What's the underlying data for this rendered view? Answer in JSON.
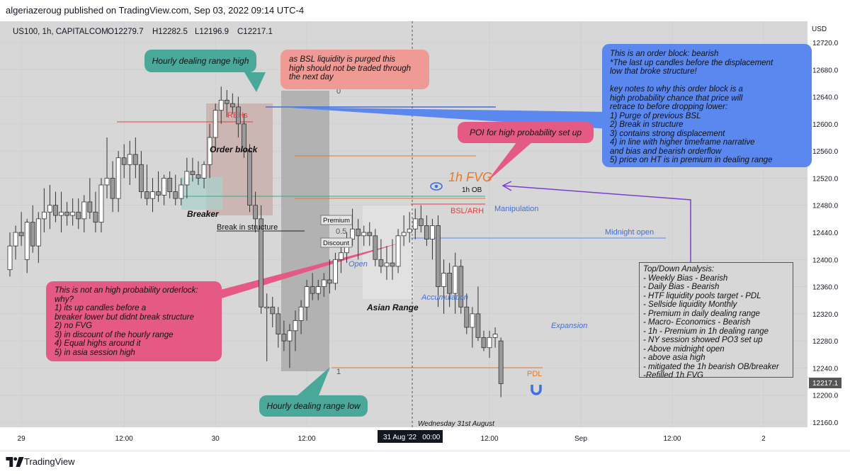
{
  "header": {
    "publisher": "algeriazeroug published on TradingView.com, Sep 03, 2022 09:14 UTC-4"
  },
  "footer": {
    "brand": "TradingView"
  },
  "symbol": {
    "name": "US100, 1h, CAPITALCOM",
    "open": "O12279.7",
    "high": "H12282.5",
    "low": "L12196.9",
    "close": "C12217.1"
  },
  "annotations": {
    "hourly_high": "Hourly dealing range high",
    "hourly_low": "Hourly dealing range low",
    "bsl_note": "as BSL liquidity is purged this\nhigh should not be traded through\nthe next day",
    "poi": "POI for high probability set up",
    "ob_note": "This is an order block: bearish\n*The last up candles before the displacement\nlow that broke structure!\n\nkey notes to why this order block is a\nhigh probability chance that price will\nretrace to before dropping lower:\n1) Purge of previous BSL\n2) Break in structure\n3) contains strong displacement\n4) in line with higher timeframe narrative\nand bias and bearish orderflow\n5) price on HT is in premium in dealing range",
    "not_ob_note": "This is not an high probability orderlock:\nwhy?\n1) its up candles before a\nbreaker lower but didnt break structure\n2) no FVG\n3) in discount of the hourly range\n4) Equal highs around it\n5) in asia session high",
    "topdown": "Top/Down Analysis:\n- Weekly Bias - Bearish\n- Daily Bias - Bearish\n- HTF liquidity pools target - PDL\n- Sellside liquidity Monthly\n- Premium in daily dealing range\n- Macro- Economics - Bearish\n- 1h - Premium in 1h dealing range\n- NY session showed PO3 set up\n- Above midnight open\n- above asia high\n- mitigated the 1h bearish OB/breaker\n-Refilled 1h FVG"
  },
  "labels": {
    "rehs": "REHs",
    "order_block": "Order block",
    "breaker": "Breaker",
    "bis": "Break in structure",
    "premium": "Premium",
    "half": "0.5",
    "discount": "Discount",
    "zero": "0",
    "one": "1",
    "fvg": "1h FVG",
    "ob_1h": "1h OB",
    "bsl_arh": "BSL/ARH",
    "manipulation": "Manipulation",
    "midnight_open": "Midnight open",
    "open": "Open",
    "accumulation": "Accumulation",
    "asian_range": "Asian Range",
    "expansion": "Expansion",
    "pdl": "PDL",
    "date_note": "Wednesday 31st August"
  },
  "colors": {
    "background": "#d7d7d7",
    "candle_body": "#ffffff",
    "candle_bear": "#9a9a9a",
    "teal": "#4aa89a",
    "pink": "#e55a85",
    "salmon": "#f09a96",
    "blue": "#5a88ef",
    "red": "#e04040",
    "orange": "#e8782a",
    "purple": "#7b3fd0"
  },
  "chart_data": {
    "type": "candlestick",
    "currency": "USD",
    "y_ticks": [
      12720,
      12680,
      12640,
      12600,
      12560,
      12520,
      12480,
      12440,
      12400,
      12360,
      12320,
      12280,
      12240,
      12200,
      12160
    ],
    "y_tick_labels": [
      "12720.0",
      "12680.0",
      "12640.0",
      "12600.0",
      "12560.0",
      "12520.0",
      "12480.0",
      "12440.0",
      "12400.0",
      "12360.0",
      "12320.0",
      "12280.0",
      "12240.0",
      "12200.0",
      "12160.0"
    ],
    "last_price_label": "12217.1",
    "ylim": [
      12140,
      12740
    ],
    "x_labels": [
      {
        "i": 2,
        "label": "29"
      },
      {
        "i": 20,
        "label": "12:00"
      },
      {
        "i": 36,
        "label": "30"
      },
      {
        "i": 52,
        "label": "12:00"
      },
      {
        "i": 84,
        "label": "12:00"
      },
      {
        "i": 100,
        "label": "Sep"
      },
      {
        "i": 116,
        "label": "12:00"
      },
      {
        "i": 132,
        "label": "2"
      }
    ],
    "crosshair_label": "31 Aug '22   00:00",
    "crosshair_index": 68,
    "candles": [
      {
        "o": 12385,
        "h": 12440,
        "l": 12375,
        "c": 12420
      },
      {
        "o": 12420,
        "h": 12450,
        "l": 12400,
        "c": 12440
      },
      {
        "o": 12440,
        "h": 12470,
        "l": 12420,
        "c": 12435
      },
      {
        "o": 12400,
        "h": 12460,
        "l": 12380,
        "c": 12455
      },
      {
        "o": 12455,
        "h": 12480,
        "l": 12410,
        "c": 12420
      },
      {
        "o": 12420,
        "h": 12470,
        "l": 12395,
        "c": 12460
      },
      {
        "o": 12460,
        "h": 12505,
        "l": 12440,
        "c": 12470
      },
      {
        "o": 12470,
        "h": 12510,
        "l": 12445,
        "c": 12480
      },
      {
        "o": 12480,
        "h": 12500,
        "l": 12455,
        "c": 12465
      },
      {
        "o": 12465,
        "h": 12500,
        "l": 12440,
        "c": 12470
      },
      {
        "o": 12470,
        "h": 12485,
        "l": 12450,
        "c": 12465
      },
      {
        "o": 12465,
        "h": 12490,
        "l": 12450,
        "c": 12470
      },
      {
        "o": 12470,
        "h": 12490,
        "l": 12445,
        "c": 12460
      },
      {
        "o": 12460,
        "h": 12495,
        "l": 12440,
        "c": 12485
      },
      {
        "o": 12485,
        "h": 12520,
        "l": 12460,
        "c": 12470
      },
      {
        "o": 12470,
        "h": 12500,
        "l": 12440,
        "c": 12455
      },
      {
        "o": 12455,
        "h": 12520,
        "l": 12440,
        "c": 12510
      },
      {
        "o": 12510,
        "h": 12580,
        "l": 12490,
        "c": 12520
      },
      {
        "o": 12520,
        "h": 12545,
        "l": 12470,
        "c": 12490
      },
      {
        "o": 12490,
        "h": 12560,
        "l": 12470,
        "c": 12550
      },
      {
        "o": 12550,
        "h": 12570,
        "l": 12520,
        "c": 12540
      },
      {
        "o": 12540,
        "h": 12575,
        "l": 12510,
        "c": 12555
      },
      {
        "o": 12555,
        "h": 12580,
        "l": 12520,
        "c": 12540
      },
      {
        "o": 12540,
        "h": 12560,
        "l": 12490,
        "c": 12500
      },
      {
        "o": 12500,
        "h": 12540,
        "l": 12480,
        "c": 12490
      },
      {
        "o": 12490,
        "h": 12520,
        "l": 12470,
        "c": 12500
      },
      {
        "o": 12500,
        "h": 12530,
        "l": 12485,
        "c": 12495
      },
      {
        "o": 12495,
        "h": 12525,
        "l": 12480,
        "c": 12520
      },
      {
        "o": 12520,
        "h": 12530,
        "l": 12490,
        "c": 12500
      },
      {
        "o": 12500,
        "h": 12525,
        "l": 12480,
        "c": 12490
      },
      {
        "o": 12490,
        "h": 12520,
        "l": 12480,
        "c": 12510
      },
      {
        "o": 12510,
        "h": 12550,
        "l": 12490,
        "c": 12530
      },
      {
        "o": 12530,
        "h": 12550,
        "l": 12515,
        "c": 12525
      },
      {
        "o": 12525,
        "h": 12545,
        "l": 12510,
        "c": 12520
      },
      {
        "o": 12520,
        "h": 12545,
        "l": 12505,
        "c": 12540
      },
      {
        "o": 12540,
        "h": 12600,
        "l": 12520,
        "c": 12580
      },
      {
        "o": 12580,
        "h": 12630,
        "l": 12560,
        "c": 12620
      },
      {
        "o": 12620,
        "h": 12655,
        "l": 12600,
        "c": 12635
      },
      {
        "o": 12635,
        "h": 12650,
        "l": 12610,
        "c": 12630
      },
      {
        "o": 12630,
        "h": 12645,
        "l": 12615,
        "c": 12625
      },
      {
        "o": 12625,
        "h": 12640,
        "l": 12580,
        "c": 12600
      },
      {
        "o": 12600,
        "h": 12615,
        "l": 12550,
        "c": 12560
      },
      {
        "o": 12560,
        "h": 12570,
        "l": 12470,
        "c": 12480
      },
      {
        "o": 12480,
        "h": 12500,
        "l": 12440,
        "c": 12460
      },
      {
        "o": 12460,
        "h": 12480,
        "l": 12320,
        "c": 12330
      },
      {
        "o": 12330,
        "h": 12350,
        "l": 12250,
        "c": 12330
      },
      {
        "o": 12330,
        "h": 12345,
        "l": 12300,
        "c": 12320
      },
      {
        "o": 12320,
        "h": 12330,
        "l": 12270,
        "c": 12290
      },
      {
        "o": 12290,
        "h": 12310,
        "l": 12265,
        "c": 12280
      },
      {
        "o": 12280,
        "h": 12305,
        "l": 12240,
        "c": 12295
      },
      {
        "o": 12295,
        "h": 12325,
        "l": 12265,
        "c": 12310
      },
      {
        "o": 12310,
        "h": 12340,
        "l": 12290,
        "c": 12330
      },
      {
        "o": 12330,
        "h": 12370,
        "l": 12310,
        "c": 12360
      },
      {
        "o": 12360,
        "h": 12380,
        "l": 12340,
        "c": 12350
      },
      {
        "o": 12350,
        "h": 12370,
        "l": 12340,
        "c": 12360
      },
      {
        "o": 12360,
        "h": 12380,
        "l": 12345,
        "c": 12370
      },
      {
        "o": 12370,
        "h": 12400,
        "l": 12350,
        "c": 12365
      },
      {
        "o": 12365,
        "h": 12410,
        "l": 12355,
        "c": 12400
      },
      {
        "o": 12400,
        "h": 12420,
        "l": 12380,
        "c": 12410
      },
      {
        "o": 12410,
        "h": 12440,
        "l": 12395,
        "c": 12430
      },
      {
        "o": 12430,
        "h": 12475,
        "l": 12420,
        "c": 12445
      },
      {
        "o": 12445,
        "h": 12460,
        "l": 12400,
        "c": 12435
      },
      {
        "o": 12435,
        "h": 12450,
        "l": 12420,
        "c": 12440
      },
      {
        "o": 12440,
        "h": 12455,
        "l": 12420,
        "c": 12435
      },
      {
        "o": 12435,
        "h": 12445,
        "l": 12390,
        "c": 12400
      },
      {
        "o": 12400,
        "h": 12430,
        "l": 12380,
        "c": 12390
      },
      {
        "o": 12390,
        "h": 12420,
        "l": 12370,
        "c": 12395
      },
      {
        "o": 12395,
        "h": 12430,
        "l": 12370,
        "c": 12390
      },
      {
        "o": 12390,
        "h": 12445,
        "l": 12380,
        "c": 12435
      },
      {
        "o": 12435,
        "h": 12465,
        "l": 12420,
        "c": 12440
      },
      {
        "o": 12440,
        "h": 12470,
        "l": 12425,
        "c": 12445
      },
      {
        "o": 12445,
        "h": 12475,
        "l": 12430,
        "c": 12460
      },
      {
        "o": 12460,
        "h": 12480,
        "l": 12440,
        "c": 12450
      },
      {
        "o": 12450,
        "h": 12465,
        "l": 12420,
        "c": 12430
      },
      {
        "o": 12430,
        "h": 12460,
        "l": 12400,
        "c": 12450
      },
      {
        "o": 12450,
        "h": 12465,
        "l": 12330,
        "c": 12360
      },
      {
        "o": 12360,
        "h": 12400,
        "l": 12320,
        "c": 12380
      },
      {
        "o": 12380,
        "h": 12395,
        "l": 12330,
        "c": 12350
      },
      {
        "o": 12350,
        "h": 12410,
        "l": 12320,
        "c": 12390
      },
      {
        "o": 12390,
        "h": 12400,
        "l": 12320,
        "c": 12330
      },
      {
        "o": 12330,
        "h": 12350,
        "l": 12290,
        "c": 12300
      },
      {
        "o": 12300,
        "h": 12330,
        "l": 12270,
        "c": 12320
      },
      {
        "o": 12320,
        "h": 12360,
        "l": 12280,
        "c": 12285
      },
      {
        "o": 12285,
        "h": 12295,
        "l": 12265,
        "c": 12270
      },
      {
        "o": 12270,
        "h": 12295,
        "l": 12255,
        "c": 12285
      },
      {
        "o": 12285,
        "h": 12300,
        "l": 12270,
        "c": 12290
      },
      {
        "o": 12280,
        "h": 12285,
        "l": 12197,
        "c": 12217
      }
    ],
    "candle_start_x": 14,
    "candle_spacing": 8.06
  }
}
